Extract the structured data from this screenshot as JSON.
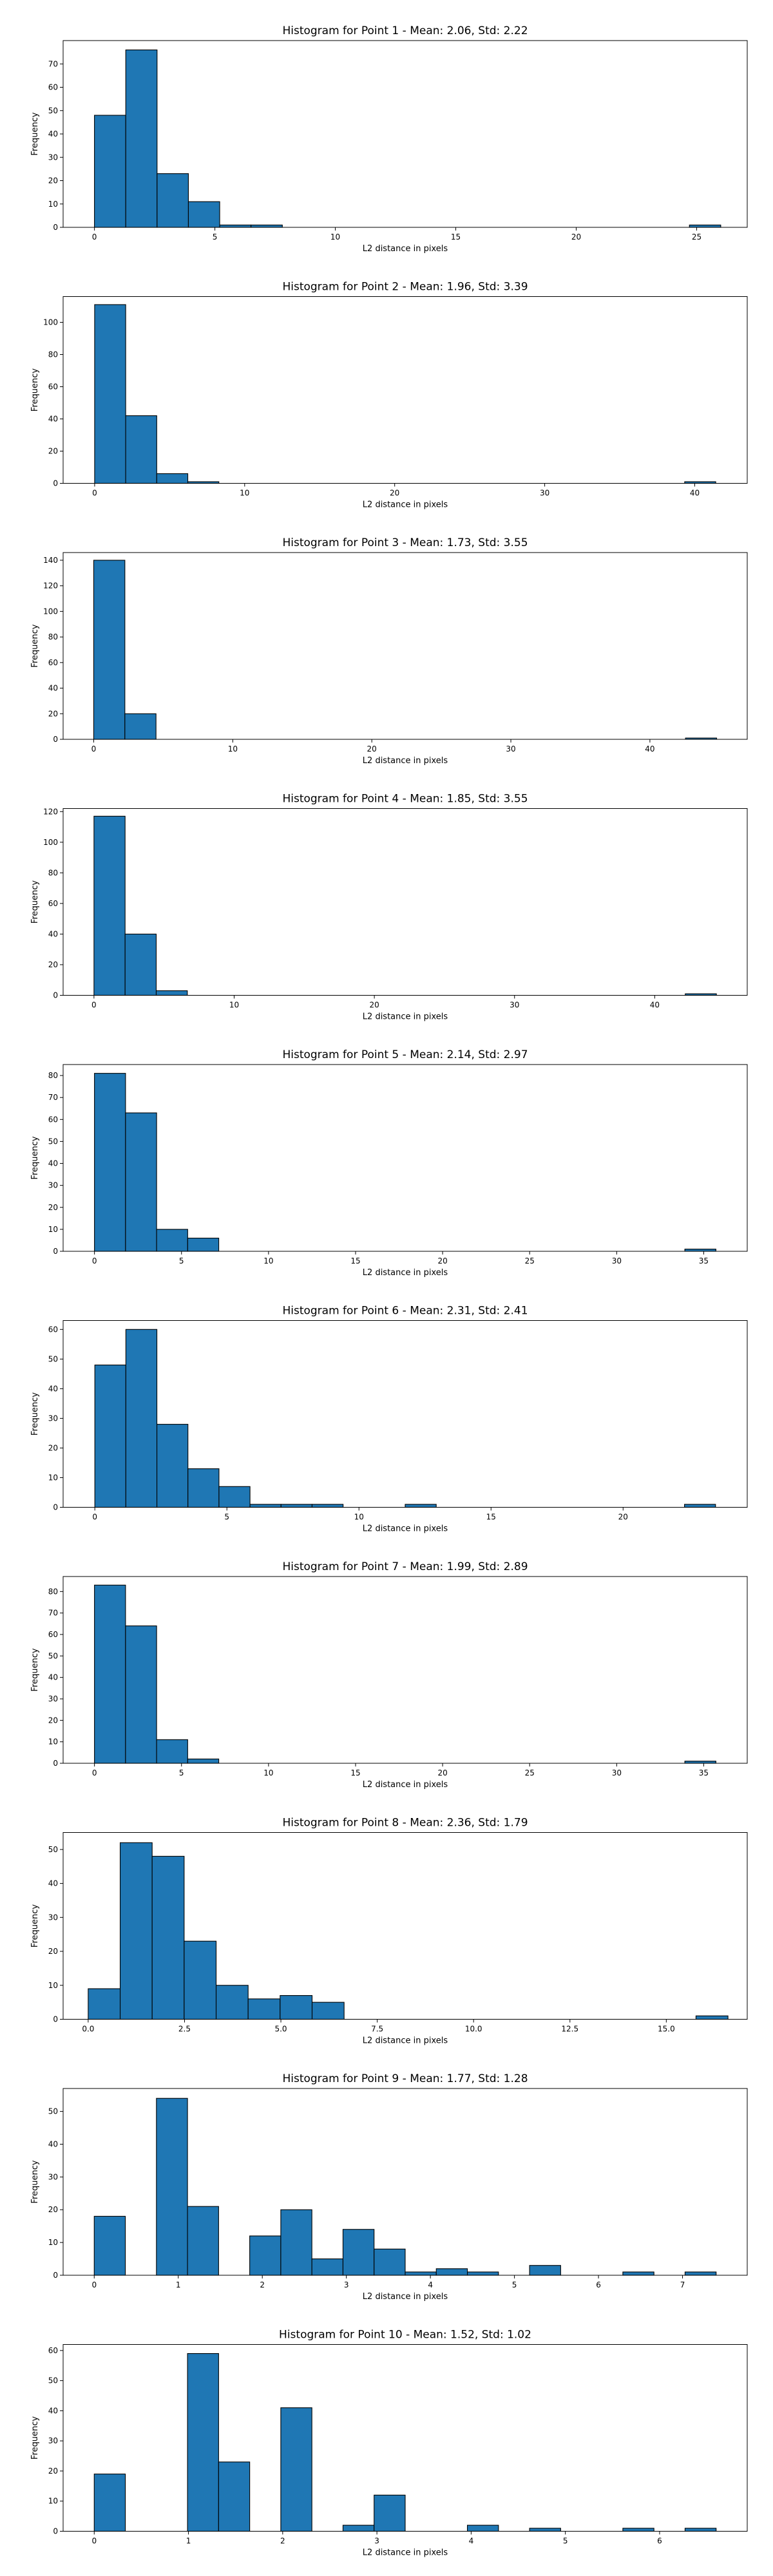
{
  "chart_data": [
    {
      "type": "bar",
      "title": "Histogram for Point 1 - Mean: 2.06, Std: 2.22",
      "xlabel": "L2 distance in pixels",
      "ylabel": "Frequency",
      "xlim": [
        -1.3,
        27.1
      ],
      "ylim": [
        0,
        80
      ],
      "xticks": [
        0,
        5,
        10,
        15,
        20,
        25
      ],
      "xtick_labels": [
        "0",
        "5",
        "10",
        "15",
        "20",
        "25"
      ],
      "yticks": [
        0,
        10,
        20,
        30,
        40,
        50,
        60,
        70
      ],
      "ytick_labels": [
        "0",
        "10",
        "20",
        "30",
        "40",
        "50",
        "60",
        "70"
      ],
      "bin_edges": [
        0.0,
        1.3,
        2.6,
        3.9,
        5.2,
        6.5,
        7.8,
        9.1,
        10.4,
        11.7,
        13.0,
        14.3,
        15.6,
        16.9,
        18.2,
        19.5,
        20.8,
        22.1,
        23.4,
        24.7,
        26.0
      ],
      "counts": [
        48,
        76,
        23,
        11,
        1,
        1,
        0,
        0,
        0,
        0,
        0,
        0,
        0,
        0,
        0,
        0,
        0,
        0,
        0,
        1
      ]
    },
    {
      "type": "bar",
      "title": "Histogram for Point 2 - Mean: 1.96, Std: 3.39",
      "xlabel": "L2 distance in pixels",
      "ylabel": "Frequency",
      "xlim": [
        -2.1,
        43.5
      ],
      "ylim": [
        0,
        116
      ],
      "xticks": [
        0,
        10,
        20,
        30,
        40
      ],
      "xtick_labels": [
        "0",
        "10",
        "20",
        "30",
        "40"
      ],
      "yticks": [
        0,
        20,
        40,
        60,
        80,
        100
      ],
      "ytick_labels": [
        "0",
        "20",
        "40",
        "60",
        "80",
        "100"
      ],
      "bin_edges": [
        0.0,
        2.07,
        4.14,
        6.21,
        8.28,
        10.35,
        12.42,
        14.49,
        16.56,
        18.63,
        20.7,
        22.77,
        24.84,
        26.91,
        28.98,
        31.05,
        33.12,
        35.19,
        37.26,
        39.33,
        41.4
      ],
      "counts": [
        111,
        42,
        6,
        1,
        0,
        0,
        0,
        0,
        0,
        0,
        0,
        0,
        0,
        0,
        0,
        0,
        0,
        0,
        0,
        1
      ]
    },
    {
      "type": "bar",
      "title": "Histogram for Point 3 - Mean: 1.73, Std: 3.55",
      "xlabel": "L2 distance in pixels",
      "ylabel": "Frequency",
      "xlim": [
        -2.2,
        47.0
      ],
      "ylim": [
        0,
        146
      ],
      "xticks": [
        0,
        10,
        20,
        30,
        40
      ],
      "xtick_labels": [
        "0",
        "10",
        "20",
        "30",
        "40"
      ],
      "yticks": [
        0,
        20,
        40,
        60,
        80,
        100,
        120,
        140
      ],
      "ytick_labels": [
        "0",
        "20",
        "40",
        "60",
        "80",
        "100",
        "120",
        "140"
      ],
      "bin_edges": [
        0.0,
        2.24,
        4.48,
        6.72,
        8.96,
        11.2,
        13.44,
        15.68,
        17.92,
        20.16,
        22.4,
        24.64,
        26.88,
        29.12,
        31.36,
        33.6,
        35.84,
        38.08,
        40.32,
        42.56,
        44.8
      ],
      "counts": [
        140,
        20,
        0,
        0,
        0,
        0,
        0,
        0,
        0,
        0,
        0,
        0,
        0,
        0,
        0,
        0,
        0,
        0,
        0,
        1
      ]
    },
    {
      "type": "bar",
      "title": "Histogram for Point 4 - Mean: 1.85, Std: 3.55",
      "xlabel": "L2 distance in pixels",
      "ylabel": "Frequency",
      "xlim": [
        -2.2,
        46.6
      ],
      "ylim": [
        0,
        122
      ],
      "xticks": [
        0,
        10,
        20,
        30,
        40
      ],
      "xtick_labels": [
        "0",
        "10",
        "20",
        "30",
        "40"
      ],
      "yticks": [
        0,
        20,
        40,
        60,
        80,
        100,
        120
      ],
      "ytick_labels": [
        "0",
        "20",
        "40",
        "60",
        "80",
        "100",
        "120"
      ],
      "bin_edges": [
        0.0,
        2.22,
        4.44,
        6.66,
        8.88,
        11.1,
        13.32,
        15.54,
        17.76,
        19.98,
        22.2,
        24.42,
        26.64,
        28.86,
        31.08,
        33.3,
        35.52,
        37.74,
        39.96,
        42.18,
        44.4
      ],
      "counts": [
        117,
        40,
        3,
        0,
        0,
        0,
        0,
        0,
        0,
        0,
        0,
        0,
        0,
        0,
        0,
        0,
        0,
        0,
        0,
        1
      ]
    },
    {
      "type": "bar",
      "title": "Histogram for Point 5 - Mean: 2.14, Std: 2.97",
      "xlabel": "L2 distance in pixels",
      "ylabel": "Frequency",
      "xlim": [
        -1.8,
        37.5
      ],
      "ylim": [
        0,
        85
      ],
      "xticks": [
        0,
        5,
        10,
        15,
        20,
        25,
        30,
        35
      ],
      "xtick_labels": [
        "0",
        "5",
        "10",
        "15",
        "20",
        "25",
        "30",
        "35"
      ],
      "yticks": [
        0,
        10,
        20,
        30,
        40,
        50,
        60,
        70,
        80
      ],
      "ytick_labels": [
        "0",
        "10",
        "20",
        "30",
        "40",
        "50",
        "60",
        "70",
        "80"
      ],
      "bin_edges": [
        0.0,
        1.785,
        3.57,
        5.355,
        7.14,
        8.925,
        10.71,
        12.495,
        14.28,
        16.065,
        17.85,
        19.635,
        21.42,
        23.205,
        24.99,
        26.775,
        28.56,
        30.345,
        32.13,
        33.915,
        35.7
      ],
      "counts": [
        81,
        63,
        10,
        6,
        0,
        0,
        0,
        0,
        0,
        0,
        0,
        0,
        0,
        0,
        0,
        0,
        0,
        0,
        0,
        1
      ]
    },
    {
      "type": "bar",
      "title": "Histogram for Point 6 - Mean: 2.31, Std: 2.41",
      "xlabel": "L2 distance in pixels",
      "ylabel": "Frequency",
      "xlim": [
        -1.2,
        24.7
      ],
      "ylim": [
        0,
        63
      ],
      "xticks": [
        0,
        5,
        10,
        15,
        20
      ],
      "xtick_labels": [
        "0",
        "5",
        "10",
        "15",
        "20"
      ],
      "yticks": [
        0,
        10,
        20,
        30,
        40,
        50,
        60
      ],
      "ytick_labels": [
        "0",
        "10",
        "20",
        "30",
        "40",
        "50",
        "60"
      ],
      "bin_edges": [
        0.0,
        1.175,
        2.35,
        3.525,
        4.7,
        5.875,
        7.05,
        8.225,
        9.4,
        10.575,
        11.75,
        12.925,
        14.1,
        15.275,
        16.45,
        17.625,
        18.8,
        19.975,
        21.15,
        22.325,
        23.5
      ],
      "counts": [
        48,
        60,
        28,
        13,
        7,
        1,
        1,
        1,
        0,
        0,
        1,
        0,
        0,
        0,
        0,
        0,
        0,
        0,
        0,
        1
      ]
    },
    {
      "type": "bar",
      "title": "Histogram for Point 7 - Mean: 1.99, Std: 2.89",
      "xlabel": "L2 distance in pixels",
      "ylabel": "Frequency",
      "xlim": [
        -1.8,
        37.5
      ],
      "ylim": [
        0,
        87
      ],
      "xticks": [
        0,
        5,
        10,
        15,
        20,
        25,
        30,
        35
      ],
      "xtick_labels": [
        "0",
        "5",
        "10",
        "15",
        "20",
        "25",
        "30",
        "35"
      ],
      "yticks": [
        0,
        10,
        20,
        30,
        40,
        50,
        60,
        70,
        80
      ],
      "ytick_labels": [
        "0",
        "10",
        "20",
        "30",
        "40",
        "50",
        "60",
        "70",
        "80"
      ],
      "bin_edges": [
        0.0,
        1.785,
        3.57,
        5.355,
        7.14,
        8.925,
        10.71,
        12.495,
        14.28,
        16.065,
        17.85,
        19.635,
        21.42,
        23.205,
        24.99,
        26.775,
        28.56,
        30.345,
        32.13,
        33.915,
        35.7
      ],
      "counts": [
        83,
        64,
        11,
        2,
        0,
        0,
        0,
        0,
        0,
        0,
        0,
        0,
        0,
        0,
        0,
        0,
        0,
        0,
        0,
        1
      ]
    },
    {
      "type": "bar",
      "title": "Histogram for Point 8 - Mean: 2.36, Std: 1.79",
      "xlabel": "L2 distance in pixels",
      "ylabel": "Frequency",
      "xlim": [
        -0.65,
        17.1
      ],
      "ylim": [
        0,
        55
      ],
      "xticks": [
        0.0,
        2.5,
        5.0,
        7.5,
        10.0,
        12.5,
        15.0
      ],
      "xtick_labels": [
        "0.0",
        "2.5",
        "5.0",
        "7.5",
        "10.0",
        "12.5",
        "15.0"
      ],
      "yticks": [
        0,
        10,
        20,
        30,
        40,
        50
      ],
      "ytick_labels": [
        "0",
        "10",
        "20",
        "30",
        "40",
        "50"
      ],
      "bin_edges": [
        0.0,
        0.83,
        1.66,
        2.49,
        3.32,
        4.15,
        4.98,
        5.81,
        6.64,
        7.47,
        8.3,
        9.13,
        9.96,
        10.79,
        11.62,
        12.45,
        13.28,
        14.11,
        14.94,
        15.77,
        16.6
      ],
      "counts": [
        9,
        52,
        48,
        23,
        10,
        6,
        7,
        5,
        0,
        0,
        0,
        0,
        0,
        0,
        0,
        0,
        0,
        0,
        0,
        1
      ]
    },
    {
      "type": "bar",
      "title": "Histogram for Point 9 - Mean: 1.77, Std: 1.28",
      "xlabel": "L2 distance in pixels",
      "ylabel": "Frequency",
      "xlim": [
        -0.37,
        7.77
      ],
      "ylim": [
        0,
        57
      ],
      "xticks": [
        0,
        1,
        2,
        3,
        4,
        5,
        6,
        7
      ],
      "xtick_labels": [
        "0",
        "1",
        "2",
        "3",
        "4",
        "5",
        "6",
        "7"
      ],
      "yticks": [
        0,
        10,
        20,
        30,
        40,
        50
      ],
      "ytick_labels": [
        "0",
        "10",
        "20",
        "30",
        "40",
        "50"
      ],
      "bin_edges": [
        0.0,
        0.37,
        0.74,
        1.11,
        1.48,
        1.85,
        2.22,
        2.59,
        2.96,
        3.33,
        3.7,
        4.07,
        4.44,
        4.81,
        5.18,
        5.55,
        5.92,
        6.29,
        6.66,
        7.03,
        7.4
      ],
      "counts": [
        18,
        0,
        54,
        21,
        0,
        12,
        20,
        5,
        14,
        8,
        1,
        2,
        1,
        0,
        3,
        0,
        0,
        1,
        0,
        1
      ]
    },
    {
      "type": "bar",
      "title": "Histogram for Point 10 - Mean: 1.52, Std: 1.02",
      "xlabel": "L2 distance in pixels",
      "ylabel": "Frequency",
      "xlim": [
        -0.33,
        6.93
      ],
      "ylim": [
        0,
        62
      ],
      "xticks": [
        0,
        1,
        2,
        3,
        4,
        5,
        6
      ],
      "xtick_labels": [
        "0",
        "1",
        "2",
        "3",
        "4",
        "5",
        "6"
      ],
      "yticks": [
        0,
        10,
        20,
        30,
        40,
        50,
        60
      ],
      "ytick_labels": [
        "0",
        "10",
        "20",
        "30",
        "40",
        "50",
        "60"
      ],
      "bin_edges": [
        0.0,
        0.33,
        0.66,
        0.99,
        1.32,
        1.65,
        1.98,
        2.31,
        2.64,
        2.97,
        3.3,
        3.63,
        3.96,
        4.29,
        4.62,
        4.95,
        5.28,
        5.61,
        5.94,
        6.27,
        6.6
      ],
      "counts": [
        19,
        0,
        0,
        59,
        23,
        0,
        41,
        0,
        2,
        12,
        0,
        0,
        2,
        0,
        1,
        0,
        0,
        1,
        0,
        1
      ]
    }
  ]
}
